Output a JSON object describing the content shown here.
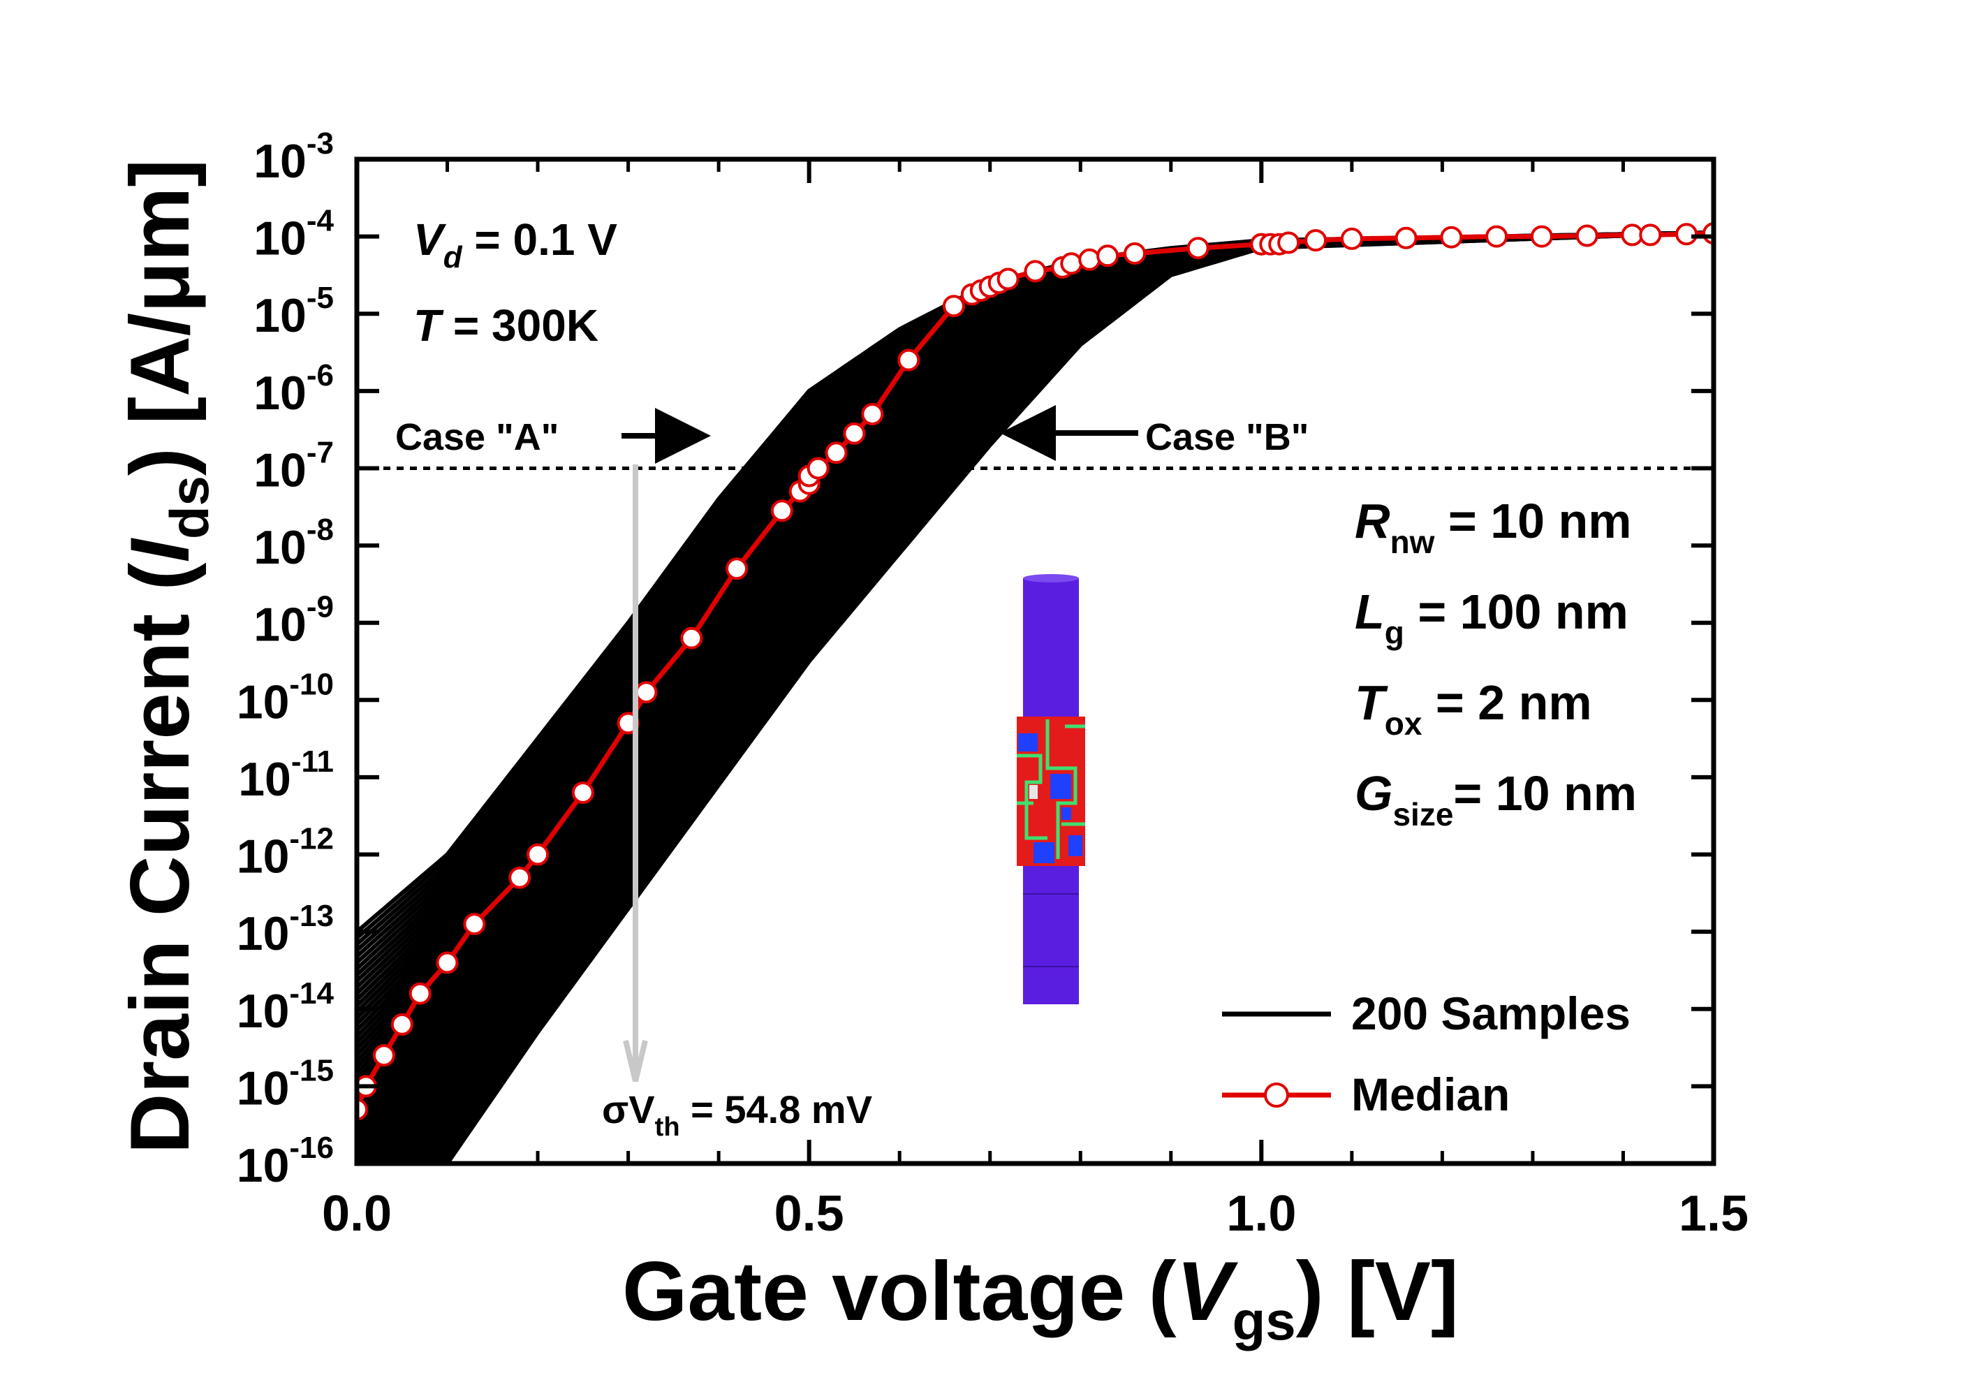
{
  "chart_data": {
    "type": "line",
    "title": "",
    "xlabel": {
      "main": "Gate voltage (",
      "sym": "V",
      "sub": "gs",
      "tail": ") [V]"
    },
    "ylabel": {
      "main": "Drain Current (",
      "sym": "I",
      "sub": "ds",
      "tail": ") [A/μm]"
    },
    "xlim": [
      0.0,
      1.5
    ],
    "ylim_log10": [
      -16,
      -3
    ],
    "y_scale": "log",
    "x_ticks": [
      "0.0",
      "0.5",
      "1.0",
      "1.5"
    ],
    "x_tick_values": [
      0.0,
      0.5,
      1.0,
      1.5
    ],
    "y_tick_exponents": [
      "-16",
      "-15",
      "-14",
      "-13",
      "-12",
      "-11",
      "-10",
      "-9",
      "-8",
      "-7",
      "-6",
      "-5",
      "-4",
      "-3"
    ],
    "y_tick_base": "10",
    "reference_line": {
      "y": 1e-07,
      "style": "dashed"
    },
    "legend_placement": "bottom-right",
    "series": [
      {
        "name": "200 Samples",
        "color": "#000000",
        "description_count": 200,
        "envelope_left": {
          "x": [
            0.0,
            0.1,
            0.2,
            0.3,
            0.4,
            0.5,
            0.6,
            0.7,
            0.8,
            0.9,
            1.0,
            1.5
          ],
          "log10_y": [
            -13.0,
            -12.0,
            -10.5,
            -9.0,
            -7.4,
            -6.0,
            -5.2,
            -4.6,
            -4.3,
            -4.15,
            -4.05,
            -3.95
          ]
        },
        "envelope_right": {
          "x": [
            0.1,
            0.2,
            0.3,
            0.4,
            0.5,
            0.6,
            0.7,
            0.8,
            0.9,
            1.0,
            1.5
          ],
          "log10_y": [
            -16.0,
            -14.3,
            -12.7,
            -11.1,
            -9.5,
            -8.1,
            -6.7,
            -5.4,
            -4.5,
            -4.15,
            -3.95
          ]
        }
      },
      {
        "name": "Median",
        "color": "#e00000",
        "marker": "open-circle",
        "x": [
          0.0,
          0.01,
          0.03,
          0.05,
          0.07,
          0.1,
          0.13,
          0.18,
          0.2,
          0.25,
          0.3,
          0.32,
          0.37,
          0.42,
          0.47,
          0.49,
          0.5,
          0.5,
          0.51,
          0.53,
          0.55,
          0.57,
          0.61,
          0.66,
          0.68,
          0.69,
          0.7,
          0.71,
          0.72,
          0.75,
          0.78,
          0.79,
          0.81,
          0.83,
          0.86,
          0.93,
          1.0,
          1.0,
          1.01,
          1.02,
          1.03,
          1.06,
          1.1,
          1.16,
          1.21,
          1.26,
          1.31,
          1.36,
          1.41,
          1.43,
          1.47,
          1.5
        ],
        "log10_y": [
          -15.3,
          -15.0,
          -14.6,
          -14.2,
          -13.8,
          -13.4,
          -12.9,
          -12.3,
          -12.0,
          -11.2,
          -10.3,
          -9.9,
          -9.2,
          -8.3,
          -7.55,
          -7.3,
          -7.2,
          -7.1,
          -7.0,
          -6.8,
          -6.55,
          -6.3,
          -5.6,
          -4.9,
          -4.75,
          -4.7,
          -4.65,
          -4.6,
          -4.55,
          -4.45,
          -4.4,
          -4.35,
          -4.3,
          -4.25,
          -4.22,
          -4.15,
          -4.1,
          -4.1,
          -4.1,
          -4.1,
          -4.08,
          -4.05,
          -4.03,
          -4.02,
          -4.01,
          -4.0,
          -4.0,
          -3.99,
          -3.98,
          -3.98,
          -3.97,
          -3.96
        ]
      }
    ],
    "legend": [
      {
        "label": "200 Samples",
        "style": "line",
        "color": "#000000"
      },
      {
        "label": "Median",
        "style": "line-circle",
        "color": "#e00000"
      }
    ],
    "annotations": {
      "vd": {
        "sym": "V",
        "sub": "d",
        "tail": " = 0.1 V"
      },
      "temp": {
        "sym": "T",
        "tail": " = 300K"
      },
      "case_a": "Case \"A\"",
      "case_b": "Case \"B\"",
      "sigma": {
        "sym": "σV",
        "sub": "th",
        "tail": " = 54.8 mV"
      },
      "params": [
        {
          "sym": "R",
          "sub": "nw",
          "tail": " = 10 nm"
        },
        {
          "sym": "L",
          "sub": "g",
          "tail": " = 100 nm"
        },
        {
          "sym": "T",
          "sub": "ox",
          "tail": " = 2 nm"
        },
        {
          "sym": "G",
          "sub": "size",
          "tail": "= 10 nm"
        }
      ]
    },
    "inset": {
      "colors": [
        "#5a1ee0",
        "#e41b1b",
        "#2040ff",
        "#3fe070",
        "#e6e6e6"
      ]
    }
  }
}
